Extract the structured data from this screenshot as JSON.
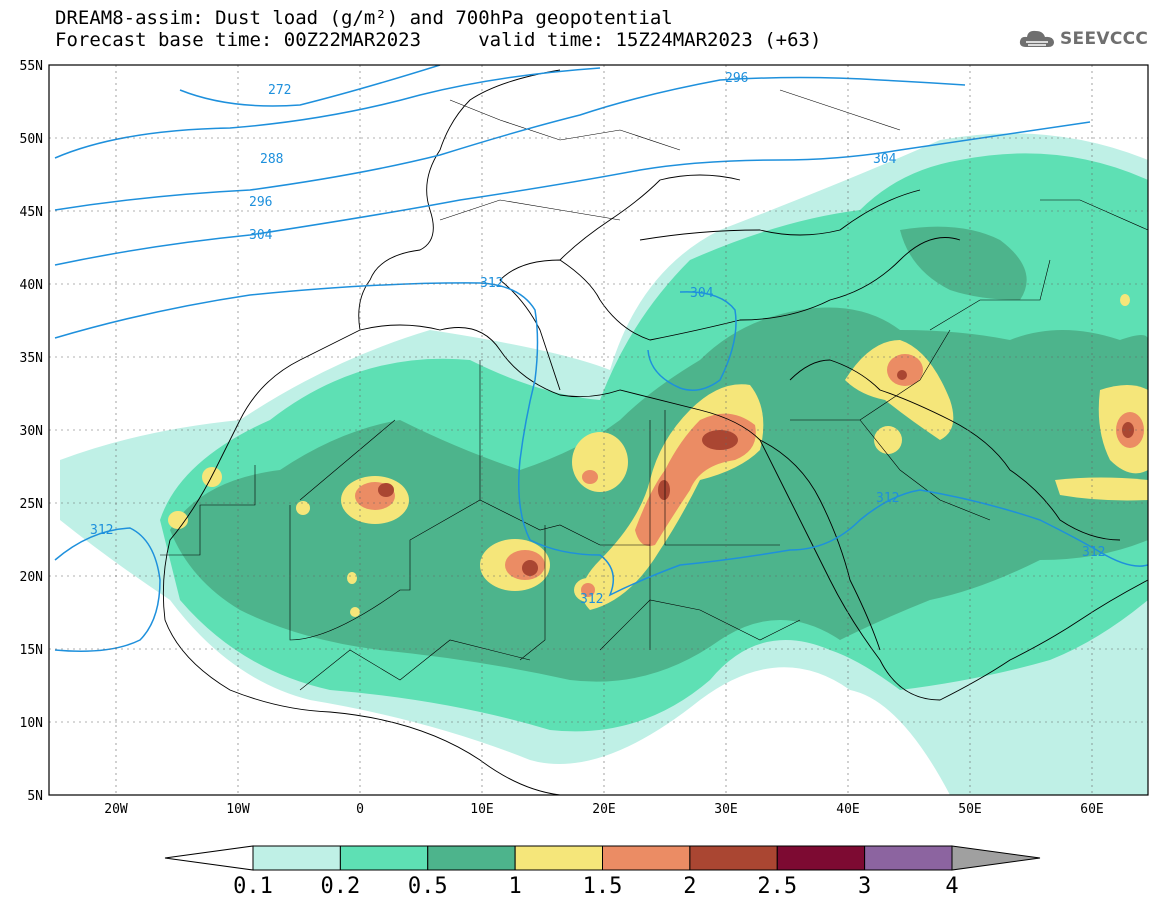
{
  "title": {
    "line1": "DREAM8-assim: Dust load (g/m²) and 700hPa geopotential",
    "line2": "Forecast base time: 00Z22MAR2023     valid time: 15Z24MAR2023 (+63)"
  },
  "logo": {
    "text": "SEEVCCC",
    "icon": "cloud-icon"
  },
  "axes": {
    "lat_labels": [
      "55N",
      "50N",
      "45N",
      "40N",
      "35N",
      "30N",
      "25N",
      "20N",
      "15N",
      "10N",
      "5N"
    ],
    "lon_labels": [
      "20W",
      "10W",
      "0",
      "10E",
      "20E",
      "30E",
      "40E",
      "50E",
      "60E"
    ],
    "lon_range": [
      -25,
      65
    ],
    "lat_range": [
      5,
      55
    ]
  },
  "contours": {
    "labels": [
      "272",
      "288",
      "296",
      "304",
      "296",
      "304",
      "312",
      "304",
      "312",
      "312",
      "312",
      "312"
    ],
    "color": "#1e90dc"
  },
  "colorbar": {
    "ticks": [
      "0.1",
      "0.2",
      "0.5",
      "1",
      "1.5",
      "2",
      "2.5",
      "3",
      "4"
    ],
    "colors": [
      "#bff0e6",
      "#5ee0b4",
      "#4db48c",
      "#f5e67a",
      "#eb8c64",
      "#aa4632",
      "#7d0a32",
      "#8c64a0"
    ],
    "under_color": "#ffffff",
    "over_color": "#a0a0a0"
  },
  "dust_colors": {
    "c1": "#bff0e6",
    "c2": "#5ee0b4",
    "c3": "#4db48c",
    "c4": "#f5e67a",
    "c5": "#eb8c64",
    "c6": "#aa4632",
    "c7": "#7d0a32"
  }
}
